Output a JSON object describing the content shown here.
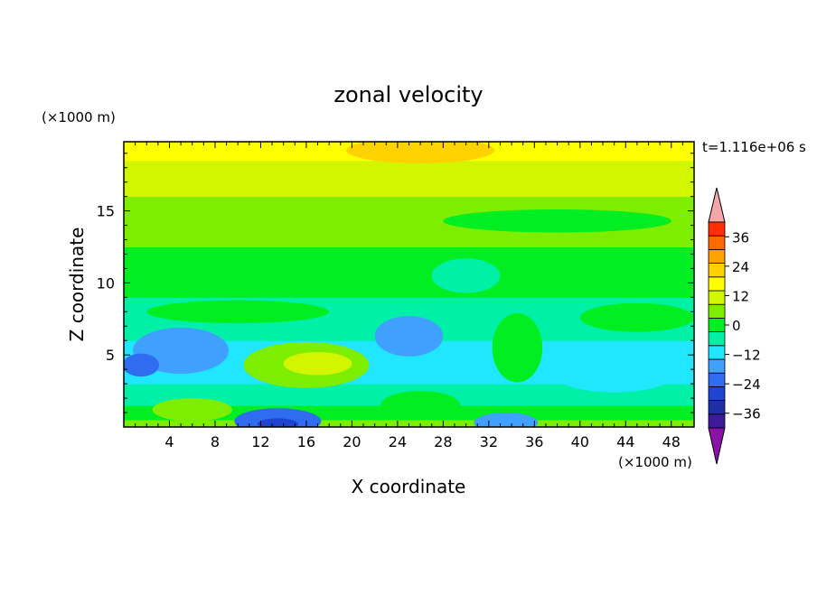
{
  "chart_data": {
    "type": "heatmap",
    "title": "zonal velocity",
    "xlabel": "X coordinate",
    "ylabel": "Z coordinate",
    "x_unit_label": "(×1000 m)",
    "y_unit_label": "(×1000 m)",
    "time_label": "t=1.116e+06 s",
    "xlim": [
      0,
      50
    ],
    "ylim": [
      0,
      19.8
    ],
    "x_ticks": [
      4,
      8,
      12,
      16,
      20,
      24,
      28,
      32,
      36,
      40,
      44,
      48
    ],
    "y_ticks": [
      5,
      10,
      15
    ],
    "colorbar": {
      "levels": [
        -42,
        -36,
        -30,
        -24,
        -18,
        -12,
        -6,
        0,
        6,
        12,
        18,
        24,
        30,
        36,
        42
      ],
      "labels": [
        "36",
        "24",
        "12",
        "0",
        "−12",
        "−24",
        "−36"
      ],
      "label_values": [
        36,
        24,
        12,
        0,
        -12,
        -24,
        -36
      ],
      "colors": [
        "#3d1a96",
        "#1d2fa3",
        "#1f44d1",
        "#2f6cf0",
        "#3fa0ff",
        "#21e6ff",
        "#00f0a8",
        "#00ee22",
        "#7eee00",
        "#d2f500",
        "#ffff00",
        "#ffd200",
        "#ffa100",
        "#ff6a00",
        "#ff2f00"
      ],
      "over_color": "#f5a7a7",
      "under_color": "#8a12a8"
    },
    "bands": [
      {
        "z": [
          0.0,
          0.5
        ],
        "value": 9
      },
      {
        "z": [
          0.5,
          1.5
        ],
        "value": 5
      },
      {
        "z": [
          1.5,
          3.0
        ],
        "value": -3
      },
      {
        "z": [
          3.0,
          6.0
        ],
        "value": -9
      },
      {
        "z": [
          6.0,
          9.0
        ],
        "value": -3
      },
      {
        "z": [
          9.0,
          12.5
        ],
        "value": 2
      },
      {
        "z": [
          12.5,
          14.5
        ],
        "value": 6
      },
      {
        "z": [
          14.5,
          16.0
        ],
        "value": 10
      },
      {
        "z": [
          16.0,
          18.5
        ],
        "value": 16
      },
      {
        "z": [
          18.5,
          19.8
        ],
        "value": 20
      }
    ],
    "blobs": [
      {
        "x": 5,
        "z": 5.3,
        "rx": 4.2,
        "rz": 1.6,
        "value": -15
      },
      {
        "x": 1.5,
        "z": 4.3,
        "rx": 1.6,
        "rz": 0.8,
        "value": -19
      },
      {
        "x": 13.5,
        "z": 0.4,
        "rx": 3.8,
        "rz": 0.9,
        "value": -21
      },
      {
        "x": 13.5,
        "z": 0.2,
        "rx": 1.8,
        "rz": 0.4,
        "value": -25
      },
      {
        "x": 33.5,
        "z": 0.3,
        "rx": 2.8,
        "rz": 0.7,
        "value": -14
      },
      {
        "x": 26,
        "z": 19.2,
        "rx": 6.5,
        "rz": 0.9,
        "value": 24
      },
      {
        "x": 13,
        "z": 19.4,
        "rx": 5,
        "rz": 0.6,
        "value": 22
      },
      {
        "x": 16,
        "z": 4.3,
        "rx": 5.5,
        "rz": 1.6,
        "value": 7
      },
      {
        "x": 17,
        "z": 4.4,
        "rx": 3,
        "rz": 0.8,
        "value": 13
      },
      {
        "x": 34.5,
        "z": 5.5,
        "rx": 2.2,
        "rz": 2.4,
        "value": 3
      },
      {
        "x": 26,
        "z": 1.5,
        "rx": 3.5,
        "rz": 1.0,
        "value": 5
      },
      {
        "x": 6,
        "z": 1.2,
        "rx": 3.5,
        "rz": 0.8,
        "value": 6
      },
      {
        "x": 25,
        "z": 6.3,
        "rx": 3,
        "rz": 1.4,
        "value": -13
      },
      {
        "x": 43,
        "z": 3.8,
        "rx": 5.5,
        "rz": 1.4,
        "value": -11
      },
      {
        "x": 10,
        "z": 8.0,
        "rx": 8,
        "rz": 0.8,
        "value": 0
      },
      {
        "x": 30,
        "z": 10.5,
        "rx": 3,
        "rz": 1.2,
        "value": -4
      },
      {
        "x": 45,
        "z": 7.6,
        "rx": 5,
        "rz": 1.0,
        "value": 0
      },
      {
        "x": 38,
        "z": 14.3,
        "rx": 10,
        "rz": 0.8,
        "value": 5
      }
    ]
  }
}
